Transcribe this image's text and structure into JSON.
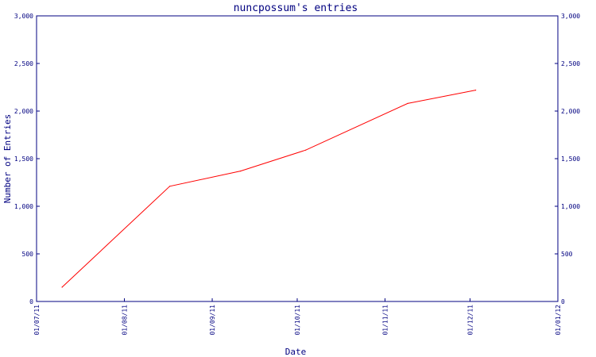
{
  "chart_data": {
    "type": "line",
    "title": "nuncpossum's entries",
    "xlabel": "Date",
    "ylabel": "Number of Entries",
    "x_ticks": [
      "01/07/11",
      "01/08/11",
      "01/09/11",
      "01/10/11",
      "01/11/11",
      "01/12/11",
      "01/01/12"
    ],
    "x_range": [
      "2011-07-01",
      "2012-01-01"
    ],
    "y_ticks": [
      "0",
      "500",
      "1,000",
      "1,500",
      "2,000",
      "2,500",
      "3,000"
    ],
    "ylim": [
      0,
      3000
    ],
    "grid": false,
    "y_axis_right_mirror": true,
    "series": [
      {
        "color": "#ff0000",
        "points": [
          {
            "x": "2011-07-10",
            "y": 150
          },
          {
            "x": "2011-08-17",
            "y": 1210
          },
          {
            "x": "2011-09-11",
            "y": 1370
          },
          {
            "x": "2011-10-04",
            "y": 1590
          },
          {
            "x": "2011-11-09",
            "y": 2080
          },
          {
            "x": "2011-12-03",
            "y": 2220
          }
        ]
      }
    ]
  }
}
